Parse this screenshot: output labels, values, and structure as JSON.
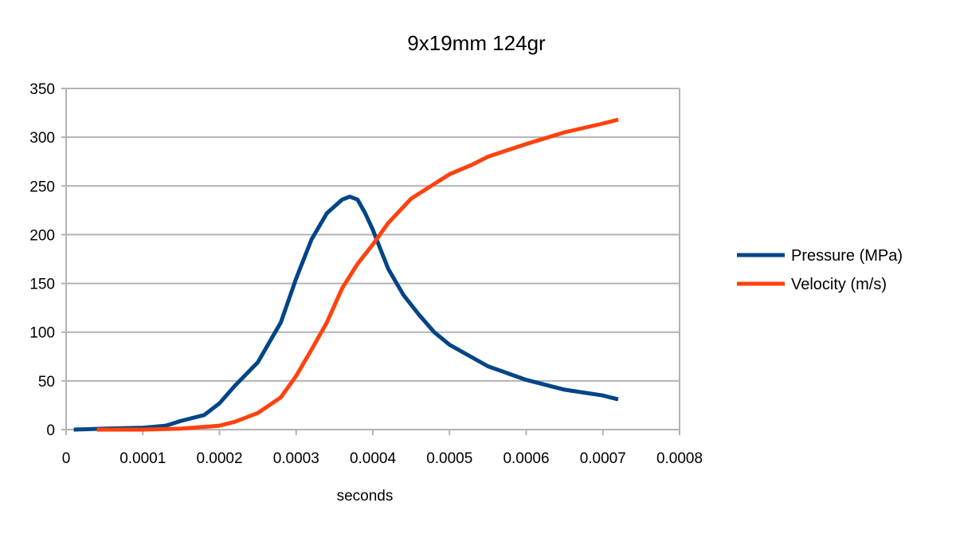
{
  "chart_data": {
    "type": "line",
    "title": "9x19mm 124gr",
    "xlabel": "seconds",
    "ylabel": "",
    "xlim": [
      0,
      0.0008
    ],
    "ylim": [
      0,
      350
    ],
    "xticks": [
      "0",
      "0.0001",
      "0.0002",
      "0.0003",
      "0.0004",
      "0.0005",
      "0.0006",
      "0.0007",
      "0.0008"
    ],
    "yticks": [
      "0",
      "50",
      "100",
      "150",
      "200",
      "250",
      "300",
      "350"
    ],
    "grid": "horizontal",
    "legend_position": "right",
    "series": [
      {
        "name": "Pressure (MPa)",
        "color": "#004586",
        "x": [
          1e-05,
          5e-05,
          0.0001,
          0.00013,
          0.00015,
          0.00018,
          0.0002,
          0.00022,
          0.00025,
          0.00028,
          0.0003,
          0.00032,
          0.00034,
          0.00036,
          0.00037,
          0.00038,
          0.00039,
          0.0004,
          0.00041,
          0.00042,
          0.00044,
          0.00046,
          0.00048,
          0.0005,
          0.00055,
          0.0006,
          0.00065,
          0.0007,
          0.00072
        ],
        "y": [
          0,
          1,
          2,
          4,
          9,
          15,
          27,
          45,
          69,
          110,
          155,
          195,
          222,
          236,
          239,
          236,
          222,
          205,
          185,
          165,
          138,
          118,
          100,
          87,
          65,
          51,
          41,
          35,
          31
        ]
      },
      {
        "name": "Velocity (m/s)",
        "color": "#ff420e",
        "x": [
          4e-05,
          0.0001,
          0.00015,
          0.0002,
          0.00022,
          0.00025,
          0.00028,
          0.0003,
          0.00032,
          0.00034,
          0.00036,
          0.00038,
          0.0004,
          0.00042,
          0.00045,
          0.00048,
          0.0005,
          0.00053,
          0.00055,
          0.0006,
          0.00065,
          0.0007,
          0.00072
        ],
        "y": [
          0,
          0,
          1,
          4,
          8,
          17,
          33,
          55,
          82,
          110,
          145,
          170,
          190,
          212,
          237,
          252,
          262,
          272,
          280,
          293,
          305,
          314,
          318
        ]
      }
    ]
  }
}
